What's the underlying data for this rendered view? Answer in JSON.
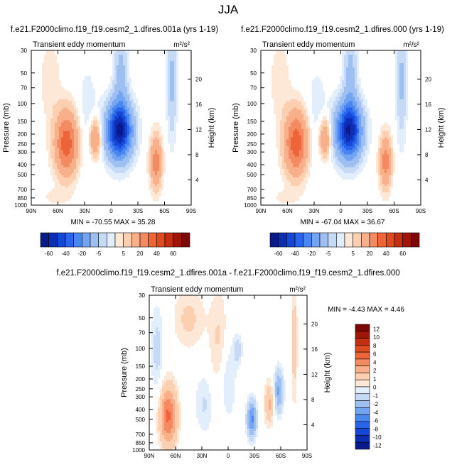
{
  "chart_data": {
    "type": "contour",
    "title": "JJA",
    "colors": {
      "neg": [
        "#0a1a8c",
        "#0d2db4",
        "#1446d8",
        "#2864ec",
        "#4a86f0",
        "#72a4f2",
        "#9ebff2",
        "#c6daf6",
        "#e2eefb"
      ],
      "pos": [
        "#fde7d6",
        "#fbcfb0",
        "#f8b08a",
        "#f38a62",
        "#ec6438",
        "#df4a22",
        "#c42e12",
        "#a11408",
        "#7d0704"
      ]
    },
    "panels": [
      {
        "title": "f.e21.F2000climo.f19_f19.cesm2_1.dfires.001a (yrs 1-19)",
        "left_label": "Transient eddy momentum",
        "units": "m²/s²",
        "ylabel": "Pressure (mb)",
        "ylabel_right": "Height (km)",
        "x_ticks": [
          "90N",
          "60N",
          "30N",
          "0",
          "30S",
          "60S",
          "90S"
        ],
        "y_ticks": [
          "30",
          "50",
          "70",
          "100",
          "150",
          "200",
          "250",
          "300",
          "400",
          "500",
          "700",
          "850",
          "1000"
        ],
        "y_ticks_right": [
          "20",
          "16",
          "12",
          "8",
          "4"
        ],
        "stats": "MIN = -70.55   MAX = 35.28",
        "min": -70.55,
        "max": 35.28,
        "colorbar_labels": [
          "-60",
          "-40",
          "-20",
          "-5",
          "5",
          "20",
          "40",
          "60"
        ]
      },
      {
        "title": "f.e21.F2000climo.f19_f19.cesm2_1.dfires.000 (yrs 1-19)",
        "left_label": "Transient eddy momentum",
        "units": "m²/s²",
        "ylabel": "Pressure (mb)",
        "ylabel_right": "Height (km)",
        "x_ticks": [
          "90N",
          "60N",
          "30N",
          "0",
          "30S",
          "60S",
          "90S"
        ],
        "y_ticks": [
          "30",
          "50",
          "70",
          "100",
          "150",
          "200",
          "250",
          "300",
          "400",
          "500",
          "700",
          "850",
          "1000"
        ],
        "y_ticks_right": [
          "20",
          "16",
          "12",
          "8",
          "4"
        ],
        "stats": "MIN = -67.04   MAX = 36.67",
        "min": -67.04,
        "max": 36.67,
        "colorbar_labels": [
          "-60",
          "-40",
          "-20",
          "-5",
          "5",
          "20",
          "40",
          "60"
        ]
      },
      {
        "title": "f.e21.F2000climo.f19_f19.cesm2_1.dfires.001a - f.e21.F2000climo.f19_f19.cesm2_1.dfires.000",
        "left_label": "Transient eddy momentum",
        "units": "m²/s²",
        "ylabel": "Pressure (mb)",
        "ylabel_right": "Height (km)",
        "x_ticks": [
          "90N",
          "60N",
          "30N",
          "0",
          "30S",
          "60S",
          "90S"
        ],
        "y_ticks": [
          "30",
          "50",
          "70",
          "100",
          "150",
          "200",
          "250",
          "300",
          "400",
          "500",
          "700",
          "850",
          "1000"
        ],
        "y_ticks_right": [
          "20",
          "16",
          "12",
          "8",
          "4"
        ],
        "stats": "MIN = -4.43   MAX = 4.46",
        "min": -4.43,
        "max": 4.46,
        "colorbar_labels": [
          "12",
          "10",
          "8",
          "6",
          "4",
          "2",
          "1",
          "0",
          "-1",
          "-2",
          "-4",
          "-6",
          "-8",
          "-10",
          "-12"
        ]
      }
    ]
  }
}
